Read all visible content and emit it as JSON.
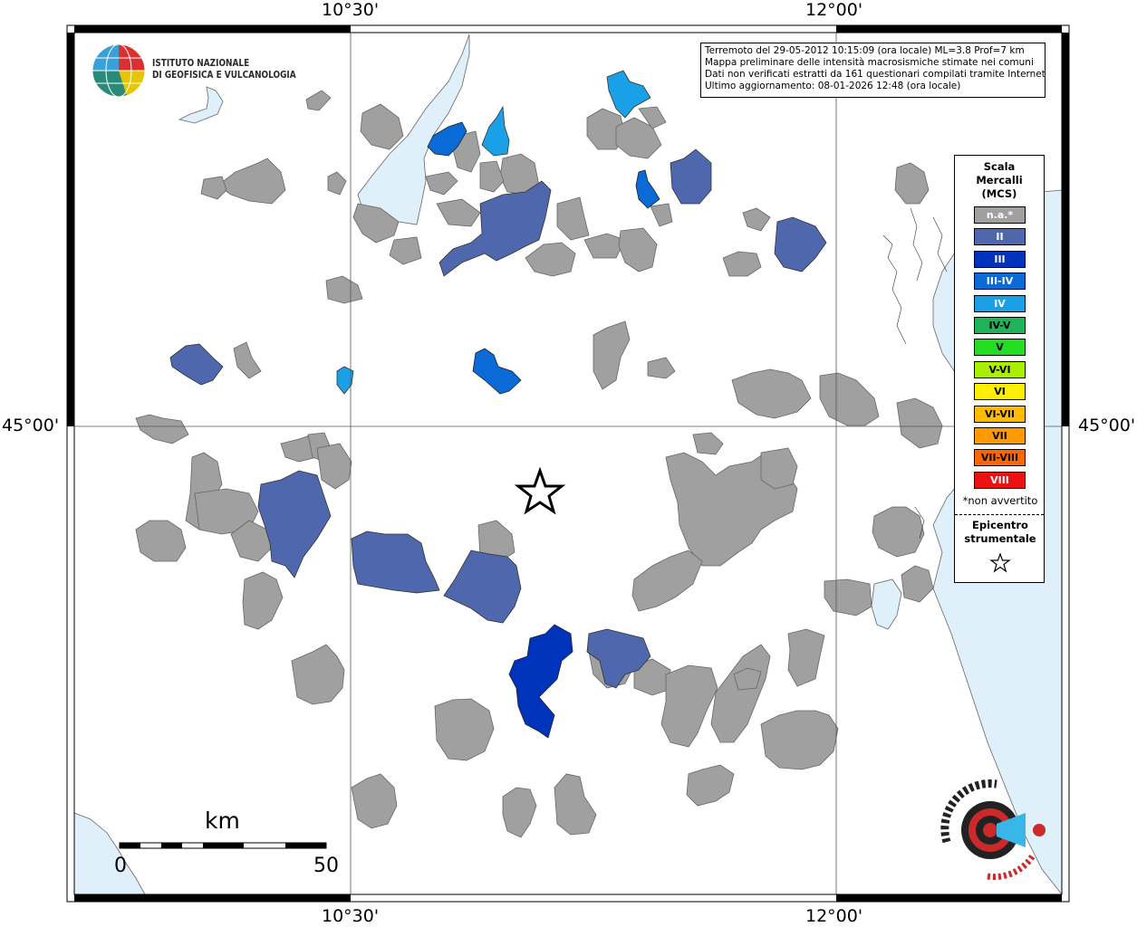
{
  "map": {
    "info_lines": [
      "Terremoto del 29-05-2012 10:15:09 (ora locale) ML=3.8 Prof=7 km",
      "Mappa preliminare delle intensità macrosismiche stimate nei comuni",
      "Dati non verificati estratti da 161 questionari compilati tramite Internet.",
      "Ultimo aggiornamento: 08-01-2026 12:48 (ora locale)"
    ],
    "institute": {
      "line1": "ISTITUTO NAZIONALE",
      "line2": "DI GEOFISICA E VULCANOLOGIA"
    },
    "ticks": {
      "lon_left": "10°30'",
      "lon_right": "12°00'",
      "lat_mid": "45°00'"
    },
    "scale_bar": {
      "unit": "km",
      "min_label": "0",
      "max_label": "50"
    },
    "legend": {
      "title": [
        "Scala",
        "Mercalli",
        "(MCS)"
      ],
      "items": [
        {
          "label": "n.a.*",
          "color": "#a0a0a0",
          "text": "#ffffff"
        },
        {
          "label": "II",
          "color": "#4f67ad",
          "text": "#ffffff"
        },
        {
          "label": "III",
          "color": "#0033bb",
          "text": "#ffffff"
        },
        {
          "label": "III-IV",
          "color": "#0a6ad6",
          "text": "#ffffff"
        },
        {
          "label": "IV",
          "color": "#1aa0e6",
          "text": "#ffffff"
        },
        {
          "label": "IV-V",
          "color": "#1fb35a",
          "text": "#000000"
        },
        {
          "label": "V",
          "color": "#22dd22",
          "text": "#000000"
        },
        {
          "label": "V-VI",
          "color": "#aaee00",
          "text": "#000000"
        },
        {
          "label": "VI",
          "color": "#ffee00",
          "text": "#000000"
        },
        {
          "label": "VI-VII",
          "color": "#ffbb00",
          "text": "#000000"
        },
        {
          "label": "VII",
          "color": "#ff9900",
          "text": "#000000"
        },
        {
          "label": "VII-VIII",
          "color": "#ff6600",
          "text": "#000000"
        },
        {
          "label": "VIII",
          "color": "#ee1111",
          "text": "#ffffff"
        }
      ],
      "note": "*non avvertito",
      "epicenter_label": [
        "Epicentro",
        "strumentale"
      ]
    },
    "colors": {
      "water": "#dff0fb",
      "na": "#a0a0a0",
      "ii": "#4f67ad",
      "iii": "#0033bb",
      "iii_iv": "#0a6ad6",
      "iv": "#1aa0e6"
    }
  }
}
